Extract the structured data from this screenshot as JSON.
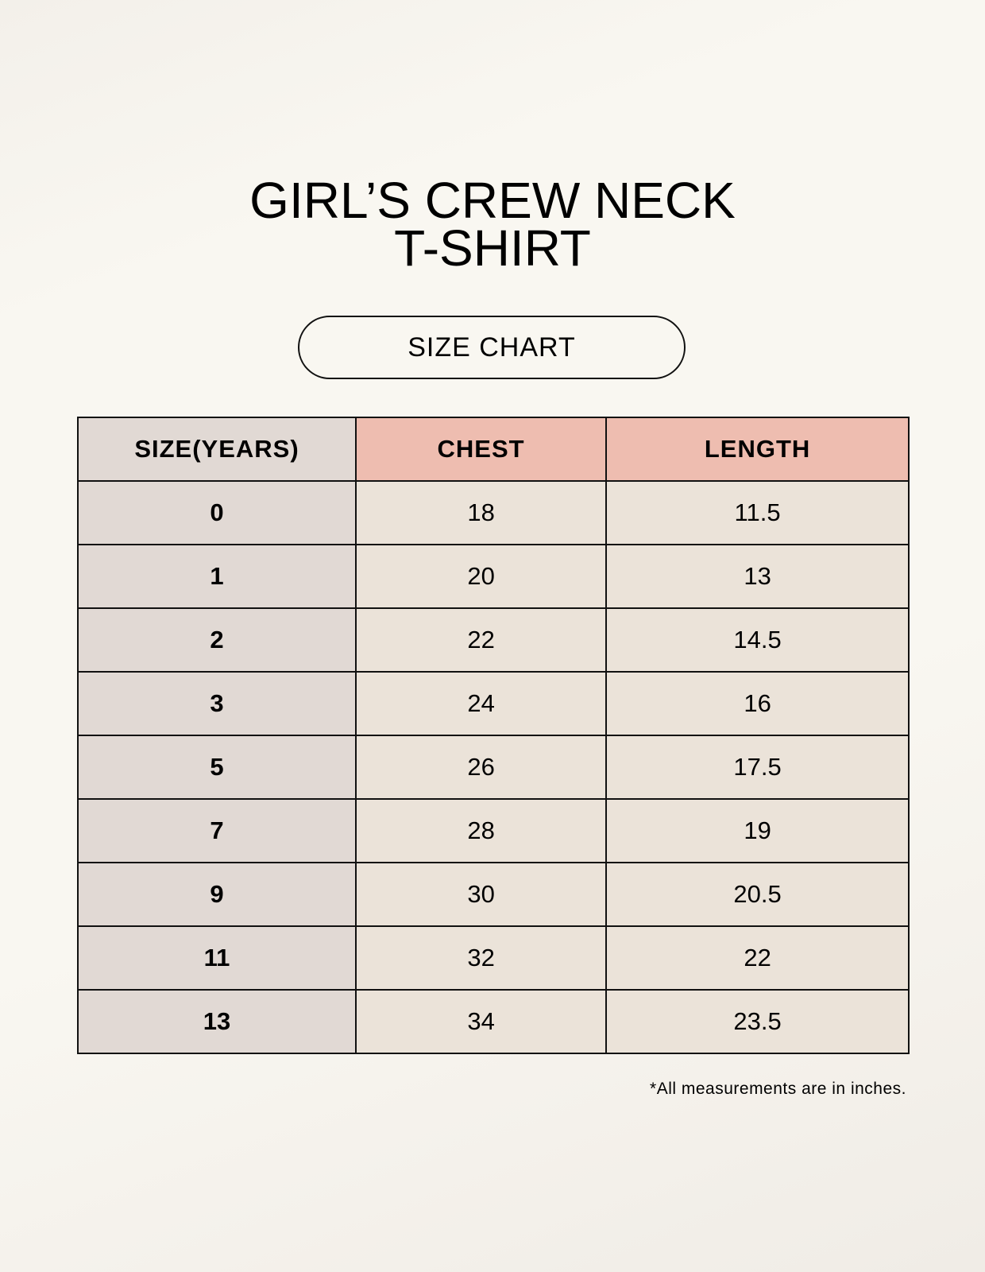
{
  "title_line1": "GIRL’S CREW NECK",
  "title_line2": "T-SHIRT",
  "subtitle": "SIZE CHART",
  "colors": {
    "header_size": "#e1d9d4",
    "header_measure": "#eebdb0",
    "cell": "#ebe3d9"
  },
  "table": {
    "headers": [
      "SIZE(YEARS)",
      "CHEST",
      "LENGTH"
    ],
    "rows": [
      [
        "0",
        "18",
        "11.5"
      ],
      [
        "1",
        "20",
        "13"
      ],
      [
        "2",
        "22",
        "14.5"
      ],
      [
        "3",
        "24",
        "16"
      ],
      [
        "5",
        "26",
        "17.5"
      ],
      [
        "7",
        "28",
        "19"
      ],
      [
        "9",
        "30",
        "20.5"
      ],
      [
        "11",
        "32",
        "22"
      ],
      [
        "13",
        "34",
        "23.5"
      ]
    ]
  },
  "footnote": "*All measurements are in inches."
}
